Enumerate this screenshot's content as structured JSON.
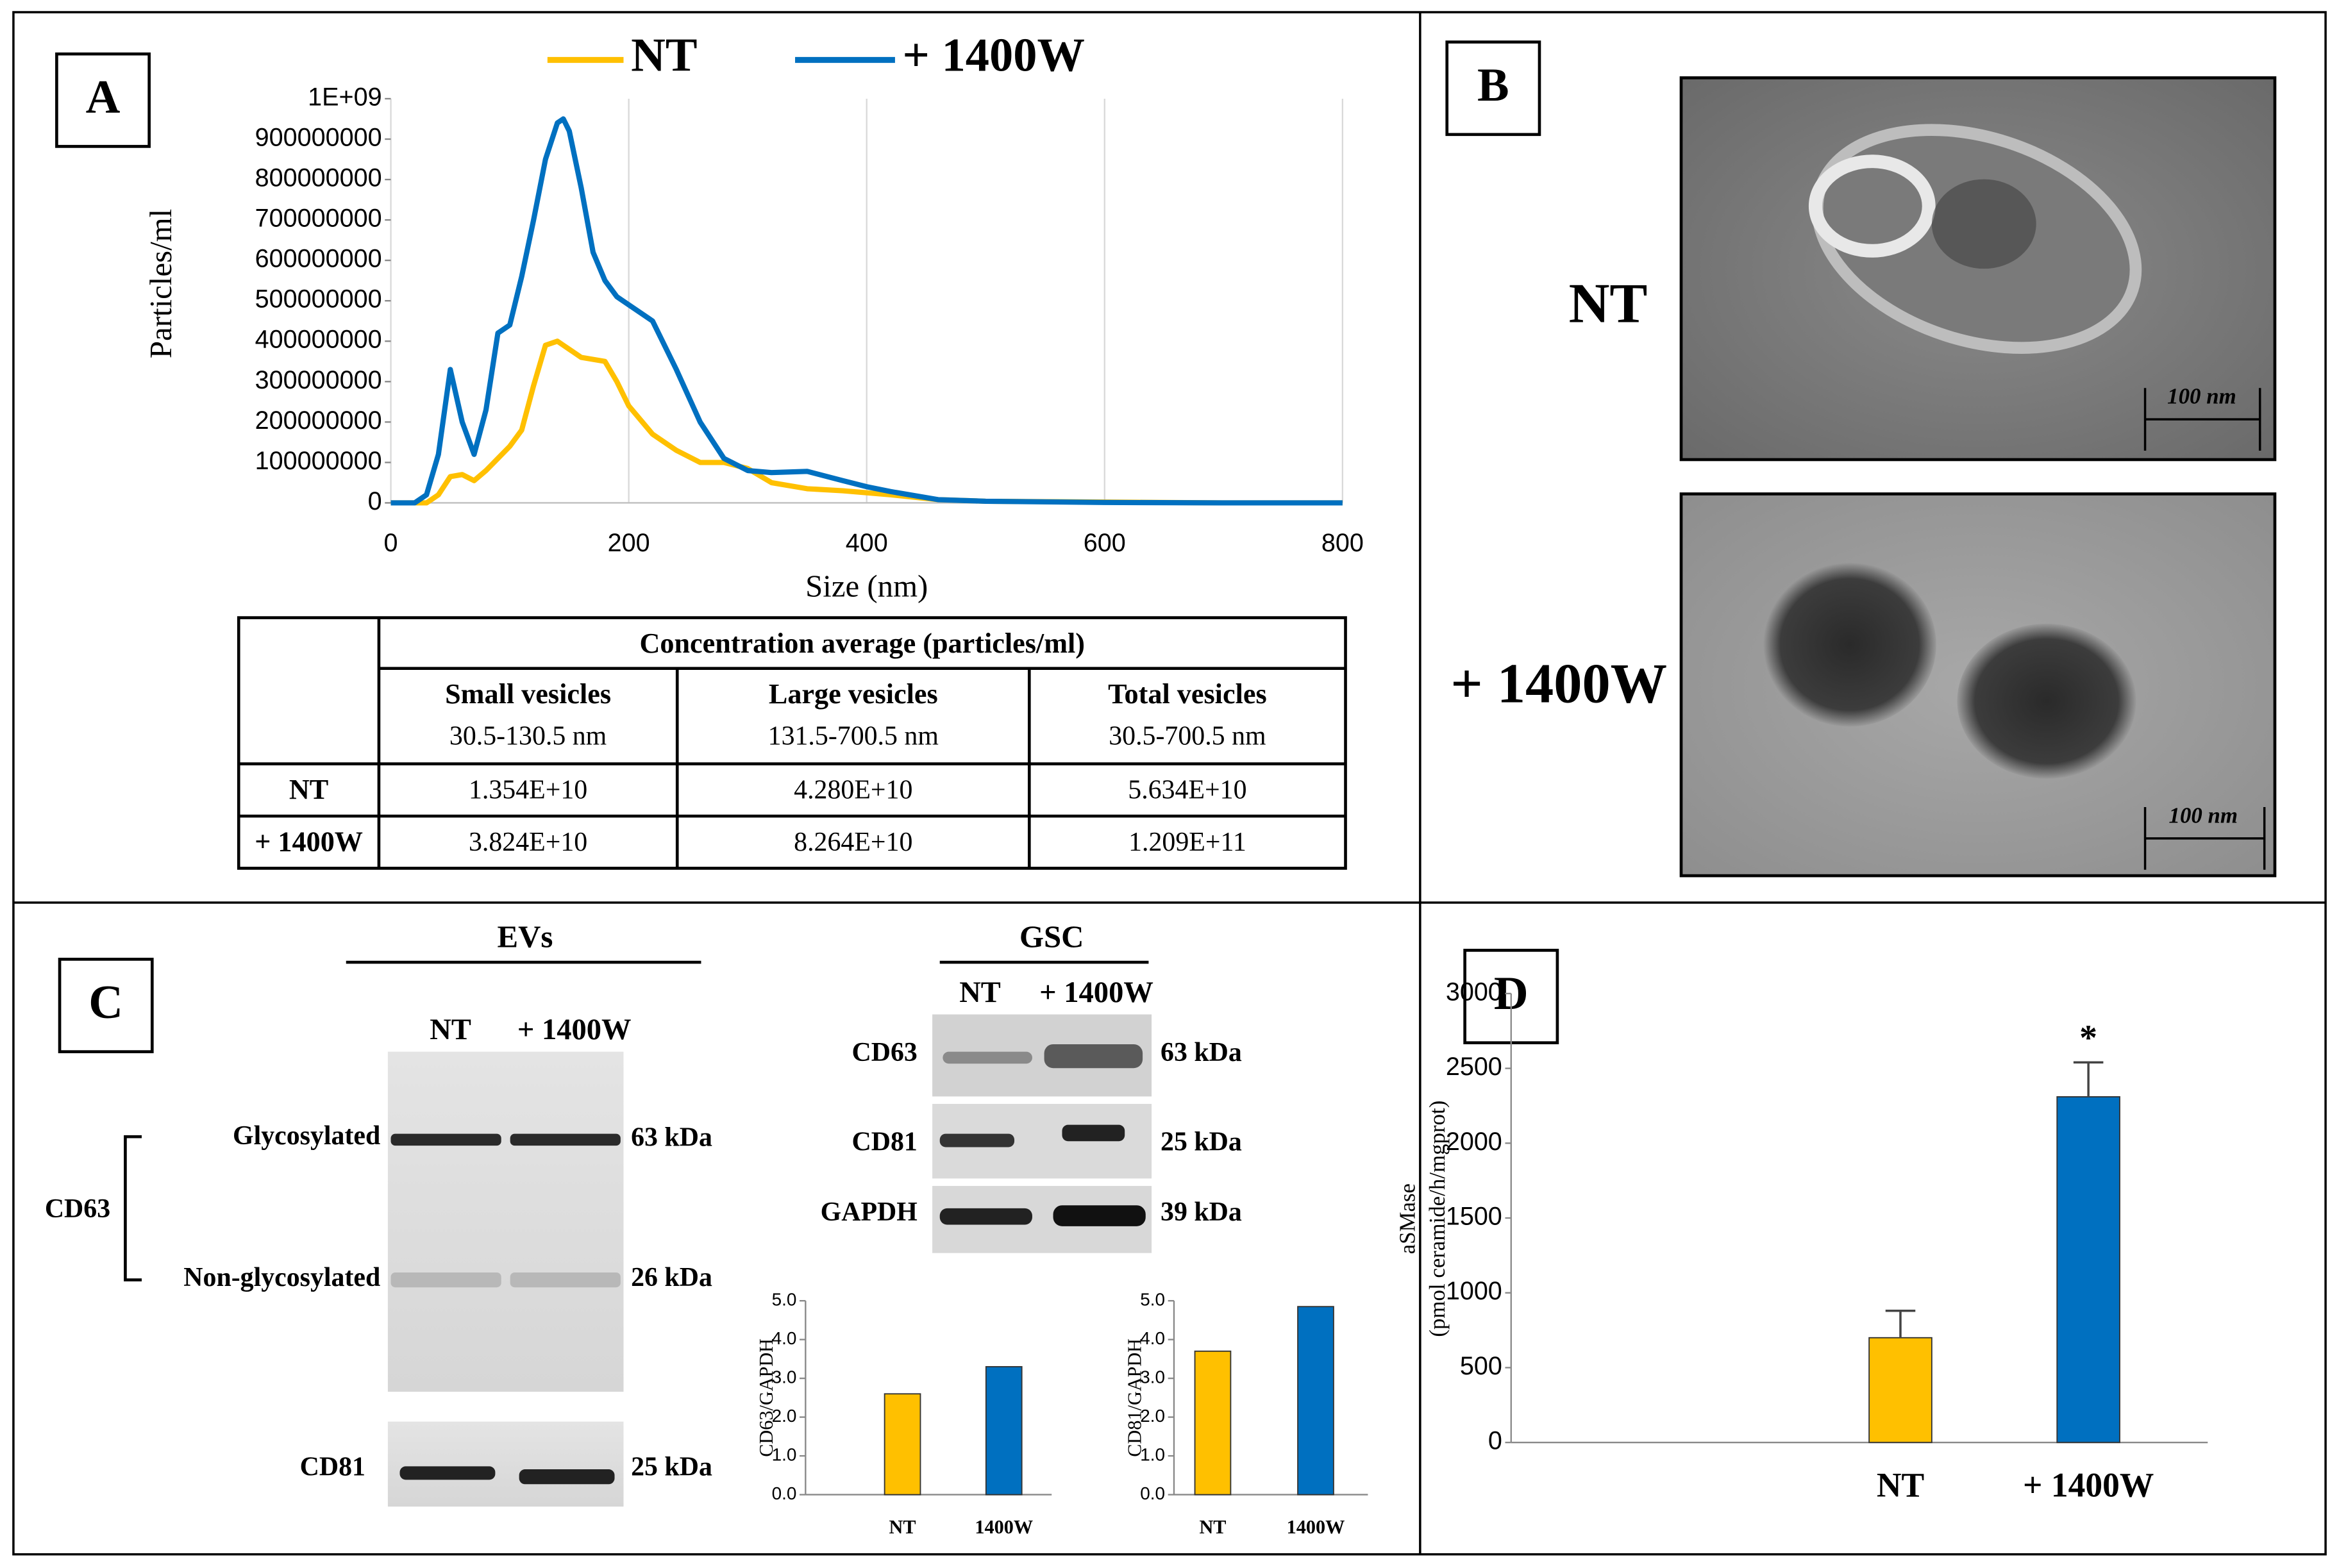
{
  "panel_labels": [
    "A",
    "B",
    "C",
    "D"
  ],
  "chart_data": [
    {
      "type": "line",
      "x_label": "Size (nm)",
      "y_label": "Particles/ml",
      "x": [
        0,
        20,
        30,
        40,
        50,
        60,
        70,
        80,
        90,
        100,
        110,
        120,
        130,
        140,
        145,
        150,
        160,
        170,
        180,
        190,
        200,
        220,
        240,
        260,
        280,
        300,
        320,
        350,
        380,
        400,
        420,
        460,
        500,
        600,
        700,
        800
      ],
      "series": [
        {
          "name": "NT",
          "color": "#FFC000",
          "values": [
            0,
            0,
            0,
            20000000,
            65000000,
            70000000,
            55000000,
            80000000,
            110000000,
            140000000,
            180000000,
            290000000,
            390000000,
            400000000,
            390000000,
            380000000,
            360000000,
            355000000,
            350000000,
            300000000,
            240000000,
            170000000,
            130000000,
            100000000,
            100000000,
            85000000,
            50000000,
            35000000,
            30000000,
            25000000,
            20000000,
            8000000,
            4000000,
            2000000,
            0,
            0
          ]
        },
        {
          "name": "+ 1400W",
          "color": "#0070C0",
          "values": [
            0,
            0,
            20000000,
            120000000,
            330000000,
            200000000,
            120000000,
            230000000,
            420000000,
            440000000,
            560000000,
            700000000,
            850000000,
            940000000,
            950000000,
            920000000,
            780000000,
            620000000,
            550000000,
            510000000,
            490000000,
            450000000,
            330000000,
            200000000,
            110000000,
            80000000,
            75000000,
            78000000,
            55000000,
            40000000,
            28000000,
            8000000,
            4000000,
            1000000,
            0,
            0
          ]
        }
      ],
      "xlim": [
        0,
        800
      ],
      "xticks": [
        0,
        200,
        400,
        600,
        800
      ],
      "ylim": [
        0,
        1000000000
      ],
      "yticks": [
        0,
        100000000,
        200000000,
        300000000,
        400000000,
        500000000,
        600000000,
        700000000,
        800000000,
        900000000,
        {
          "value": 1000000000,
          "label": "1E+09"
        }
      ],
      "grid": "x"
    },
    {
      "type": "bar",
      "y_label": "CD63/GAPDH",
      "categories": [
        "NT",
        "1400W"
      ],
      "values": [
        2.6,
        3.3
      ],
      "colors": [
        "#FFC000",
        "#0070C0"
      ],
      "ylim": [
        0,
        5
      ],
      "yticks": [
        {
          "value": 0,
          "label": "0.0"
        },
        {
          "value": 1,
          "label": "1.0"
        },
        {
          "value": 2,
          "label": "2.0"
        },
        {
          "value": 3,
          "label": "3.0"
        },
        {
          "value": 4,
          "label": "4.0"
        },
        {
          "value": 5,
          "label": "5.0"
        }
      ]
    },
    {
      "type": "bar",
      "y_label": "CD81/GAPDH",
      "categories": [
        "NT",
        "1400W"
      ],
      "values": [
        3.7,
        4.85
      ],
      "colors": [
        "#FFC000",
        "#0070C0"
      ],
      "ylim": [
        0,
        5
      ],
      "yticks": [
        {
          "value": 0,
          "label": "0.0"
        },
        {
          "value": 1,
          "label": "1.0"
        },
        {
          "value": 2,
          "label": "2.0"
        },
        {
          "value": 3,
          "label": "3.0"
        },
        {
          "value": 4,
          "label": "4.0"
        },
        {
          "value": 5,
          "label": "5.0"
        }
      ]
    },
    {
      "type": "bar",
      "y_label": [
        "aSMase",
        "(pmol ceramide/h/mgprot)"
      ],
      "categories": [
        "NT",
        "+  1400W"
      ],
      "values": [
        700,
        2310
      ],
      "errors": [
        180,
        230
      ],
      "colors": [
        "#FFC000",
        "#0070C0"
      ],
      "annotations": [
        {
          "text": "*",
          "bar": 1
        }
      ],
      "ylim": [
        0,
        3000
      ],
      "yticks": [
        0,
        500,
        1000,
        1500,
        2000,
        2500,
        3000
      ]
    }
  ],
  "table": {
    "header": "Concentration average (particles/ml)",
    "columns": [
      {
        "name": "Small vesicles",
        "range": "30.5-130.5  nm"
      },
      {
        "name": "Large vesicles",
        "range": "131.5-700.5  nm"
      },
      {
        "name": "Total vesicles",
        "range": "30.5-700.5  nm"
      }
    ],
    "rows": [
      {
        "label": "NT",
        "values": [
          "1.354E+10",
          "4.280E+10",
          "5.634E+10"
        ]
      },
      {
        "label": "+ 1400W",
        "values": [
          "3.824E+10",
          "8.264E+10",
          "1.209E+11"
        ]
      }
    ]
  },
  "micrographs": {
    "labels": [
      "NT",
      "+ 1400W"
    ],
    "scale_bars": [
      "100 nm",
      "100 nm"
    ]
  },
  "blots": {
    "evs": {
      "title": "EVs",
      "lanes": [
        "NT",
        "+ 1400W"
      ],
      "protein": "CD63",
      "bands": [
        {
          "label": "Glycosylated",
          "size": "63 kDa"
        },
        {
          "label": "Non-glycosylated",
          "size": "26 kDa"
        }
      ],
      "cd81": {
        "label": "CD81",
        "size": "25 kDa"
      }
    },
    "gsc": {
      "title": "GSC",
      "lanes": [
        "NT",
        "+ 1400W"
      ],
      "rows": [
        {
          "label": "CD63",
          "size": "63 kDa"
        },
        {
          "label": "CD81",
          "size": "25 kDa"
        },
        {
          "label": "GAPDH",
          "size": "39 kDa"
        }
      ]
    }
  }
}
